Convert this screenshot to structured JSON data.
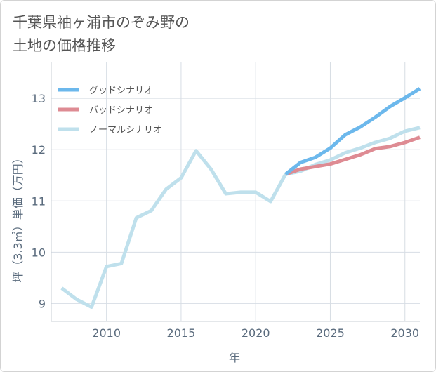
{
  "page": {
    "title": "千葉県袖ヶ浦市のぞみ野の\n土地の価格推移"
  },
  "chart_data": {
    "type": "line",
    "title": "千葉県袖ヶ浦市のぞみ野の土地の価格推移",
    "xlabel": "年",
    "ylabel": "坪（3.3㎡）単価（万円）",
    "xlim": [
      2006.3,
      2031
    ],
    "ylim": [
      8.65,
      13.7
    ],
    "xticks": [
      2010,
      2015,
      2020,
      2025,
      2030
    ],
    "yticks": [
      9,
      10,
      11,
      12,
      13
    ],
    "grid": true,
    "legend_position": "top-left",
    "series": [
      {
        "name": "グッドシナリオ",
        "color": "#6cb8ec",
        "x": [
          2022,
          2023,
          2024,
          2025,
          2026,
          2027,
          2028,
          2029,
          2030,
          2031
        ],
        "values": [
          11.52,
          11.75,
          11.85,
          12.03,
          12.29,
          12.44,
          12.63,
          12.84,
          13.01,
          13.19
        ]
      },
      {
        "name": "バッドシナリオ",
        "color": "#de8b93",
        "x": [
          2022,
          2023,
          2024,
          2025,
          2026,
          2027,
          2028,
          2029,
          2030,
          2031
        ],
        "values": [
          11.52,
          11.62,
          11.67,
          11.72,
          11.81,
          11.9,
          12.02,
          12.06,
          12.14,
          12.24
        ]
      },
      {
        "name": "ノーマルシナリオ",
        "color": "#bfe0ec",
        "x": [
          2007,
          2008,
          2009,
          2010,
          2011,
          2012,
          2013,
          2014,
          2015,
          2016,
          2017,
          2018,
          2019,
          2020,
          2021,
          2022,
          2023,
          2024,
          2025,
          2026,
          2027,
          2028,
          2029,
          2030,
          2031
        ],
        "values": [
          9.3,
          9.08,
          8.93,
          9.72,
          9.78,
          10.67,
          10.81,
          11.23,
          11.45,
          11.98,
          11.62,
          11.14,
          11.17,
          11.17,
          10.99,
          11.52,
          11.58,
          11.71,
          11.8,
          11.94,
          12.03,
          12.14,
          12.22,
          12.36,
          12.43
        ]
      }
    ]
  }
}
